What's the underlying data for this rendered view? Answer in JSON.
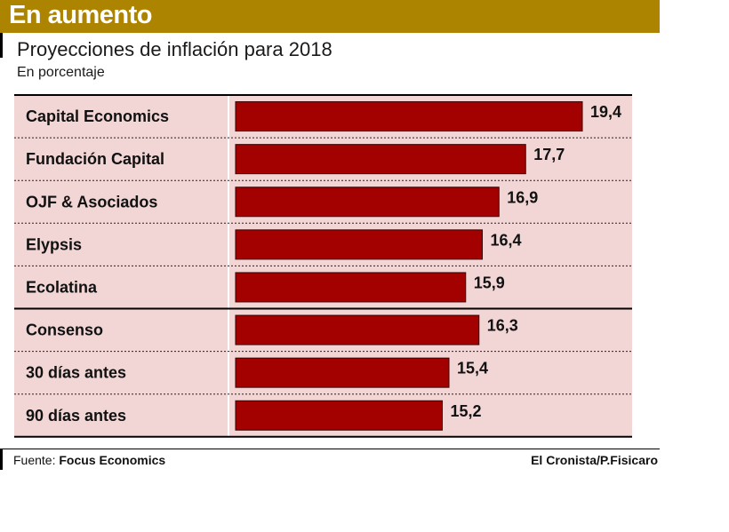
{
  "header": {
    "banner": "En aumento",
    "title": "Proyecciones de inflación para 2018",
    "subtitle": "En porcentaje"
  },
  "chart_data": {
    "type": "bar",
    "orientation": "horizontal",
    "categories": [
      "Capital Economics",
      "Fundación Capital",
      "OJF & Asociados",
      "Elypsis",
      "Ecolatina",
      "Consenso",
      "30 días antes",
      "90 días antes"
    ],
    "values": [
      19.4,
      17.7,
      16.9,
      16.4,
      15.9,
      16.3,
      15.4,
      15.2
    ],
    "value_labels": [
      "19,4",
      "17,7",
      "16,9",
      "16,4",
      "15,9",
      "16,3",
      "15,4",
      "15,2"
    ],
    "title": "Proyecciones de inflación para 2018",
    "subtitle": "En porcentaje",
    "xlim": [
      9,
      19.4
    ],
    "grid": false,
    "colors": {
      "bar": "#a30000",
      "background": "#f2d5d5"
    }
  },
  "footer": {
    "source_label": "Fuente:",
    "source_name": "Focus Economics",
    "credit": "El Cronista/P.Fisicaro"
  }
}
